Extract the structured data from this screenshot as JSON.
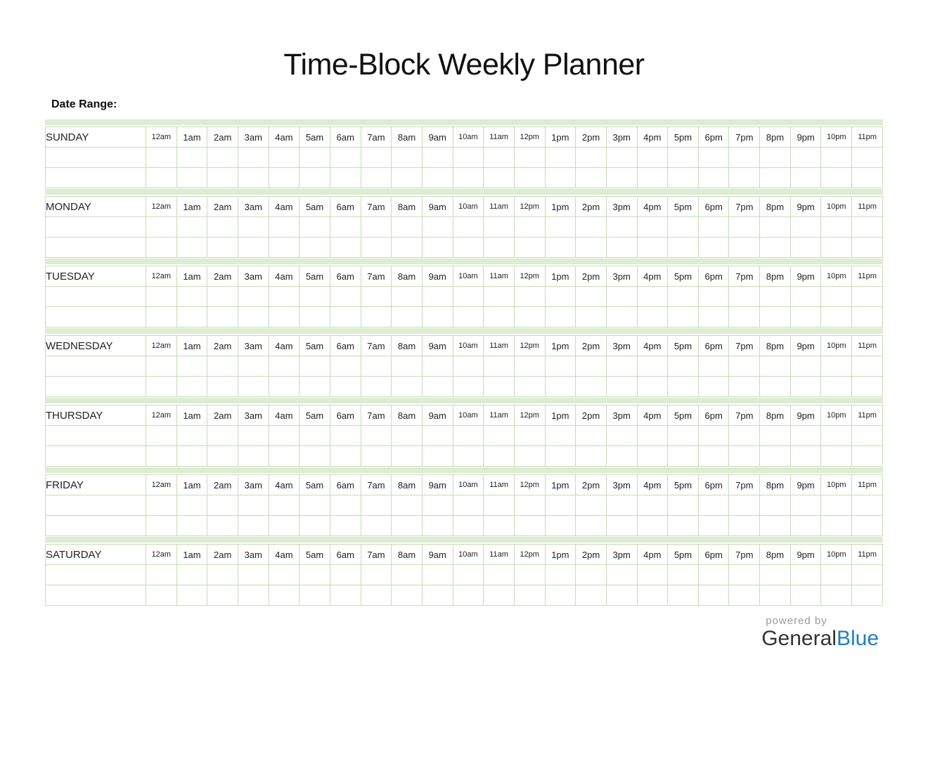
{
  "page": {
    "title": "Time-Block Weekly Planner",
    "date_range_label": "Date Range:"
  },
  "planner": {
    "days": [
      "SUNDAY",
      "MONDAY",
      "TUESDAY",
      "WEDNESDAY",
      "THURSDAY",
      "FRIDAY",
      "SATURDAY"
    ],
    "hours": [
      "12am",
      "1am",
      "2am",
      "3am",
      "4am",
      "5am",
      "6am",
      "7am",
      "8am",
      "9am",
      "10am",
      "11am",
      "12pm",
      "1pm",
      "2pm",
      "3pm",
      "4pm",
      "5pm",
      "6pm",
      "7pm",
      "8pm",
      "9pm",
      "10pm",
      "11pm"
    ],
    "empty_rows_per_day": 2
  },
  "footer": {
    "powered_by": "powered by",
    "brand_first": "General",
    "brand_second": "Blue"
  },
  "colors": {
    "band_green": "#ddecd2",
    "border_green": "#c5ddb6",
    "brand_blue": "#1f7fc4",
    "brand_dark": "#333333",
    "powered_gray": "#9a9a9a"
  }
}
